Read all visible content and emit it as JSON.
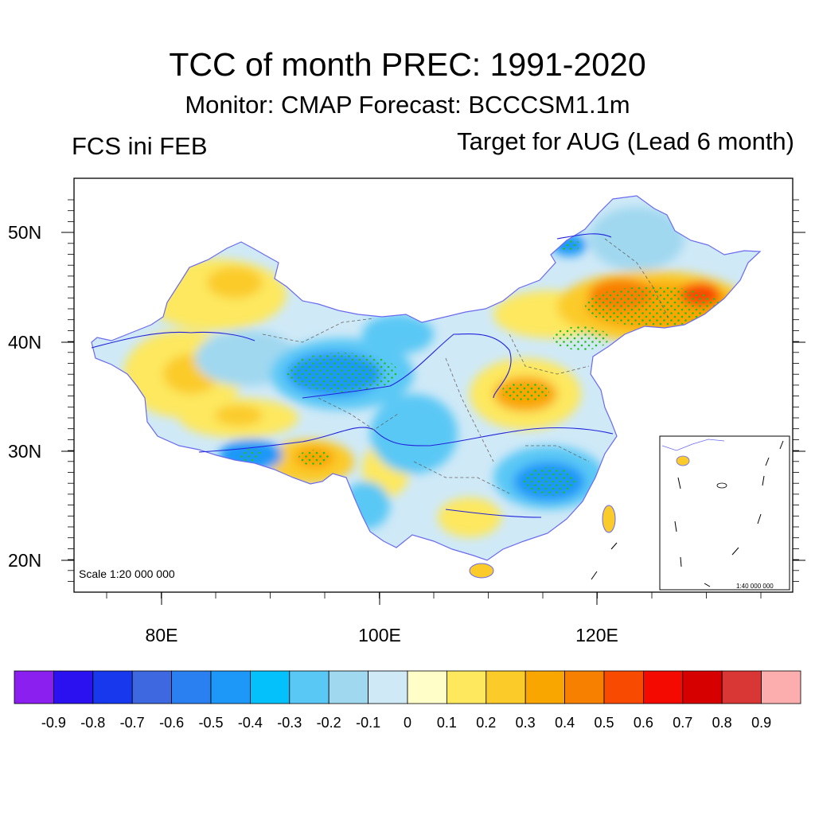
{
  "header": {
    "title": "TCC of month PREC: 1991-2020",
    "subtitle": "Monitor: CMAP   Forecast: BCCCSM1.1m",
    "left_subtitle": "FCS ini FEB",
    "right_subtitle": "Target for AUG (Lead 6 month)"
  },
  "map": {
    "lat_labels": [
      "50N",
      "40N",
      "30N",
      "20N"
    ],
    "lon_labels": [
      "80E",
      "100E",
      "120E"
    ],
    "scale_label": "Scale 1:20 000 000",
    "inset_scale_label": "1:40 000 000",
    "stipple_color": "#22c022",
    "border_color": "#8080ff"
  },
  "colorbar": {
    "colors": [
      "#8a1ff0",
      "#2b10f0",
      "#1838ee",
      "#3e68e0",
      "#2a80f0",
      "#1e98f8",
      "#04c0fb",
      "#5ac8f5",
      "#a0d8f0",
      "#cfe9f7",
      "#fffdc8",
      "#fde85e",
      "#fbcb2a",
      "#f9a600",
      "#f88000",
      "#f84a00",
      "#f50a00",
      "#d70000",
      "#d93636",
      "#fcaeae"
    ],
    "labels": [
      "-0.9",
      "-0.8",
      "-0.7",
      "-0.6",
      "-0.5",
      "-0.4",
      "-0.3",
      "-0.2",
      "-0.1",
      "0",
      "0.1",
      "0.2",
      "0.3",
      "0.4",
      "0.5",
      "0.6",
      "0.7",
      "0.8",
      "0.9"
    ]
  }
}
